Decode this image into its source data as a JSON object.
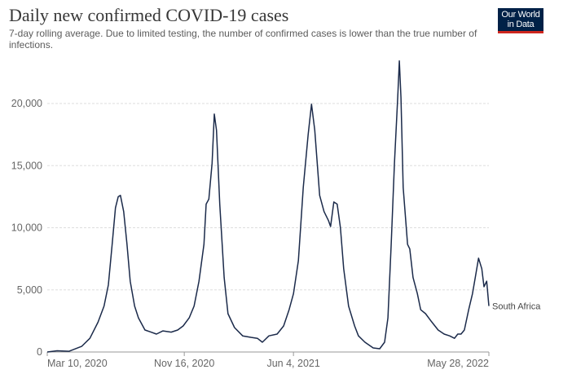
{
  "title": "Daily new confirmed COVID-19 cases",
  "subtitle": "7-day rolling average. Due to limited testing, the number of confirmed cases is lower than the true number of infections.",
  "logo": "Our World in Data",
  "chart_data": {
    "type": "line",
    "title": "Daily new confirmed COVID-19 cases",
    "subtitle": "7-day rolling average. Due to limited testing, the number of confirmed cases is lower than the true number of infections.",
    "xlabel": "",
    "ylabel": "",
    "xlim": [
      "2020-03-10",
      "2022-05-28"
    ],
    "ylim": [
      0,
      25000
    ],
    "grid": "horizontal dashed",
    "line_color": "#1b2a4a",
    "yticks": [
      0,
      5000,
      10000,
      15000,
      20000
    ],
    "ytick_labels": [
      "0",
      "5,000",
      "10,000",
      "15,000",
      "20,000"
    ],
    "xticks": [
      "2020-03-10",
      "2020-11-16",
      "2021-06-04",
      "2022-05-28"
    ],
    "xtick_labels": [
      "Mar 10, 2020",
      "Nov 16, 2020",
      "Jun 4, 2021",
      "May 28, 2022"
    ],
    "series": [
      {
        "name": "South Africa",
        "points": [
          [
            "2020-03-10",
            0
          ],
          [
            "2020-03-28",
            100
          ],
          [
            "2020-04-19",
            60
          ],
          [
            "2020-05-12",
            450
          ],
          [
            "2020-05-27",
            1100
          ],
          [
            "2020-06-11",
            2400
          ],
          [
            "2020-06-22",
            3700
          ],
          [
            "2020-06-30",
            5400
          ],
          [
            "2020-07-07",
            8700
          ],
          [
            "2020-07-13",
            11600
          ],
          [
            "2020-07-18",
            12500
          ],
          [
            "2020-07-22",
            12600
          ],
          [
            "2020-07-28",
            11300
          ],
          [
            "2020-08-03",
            8700
          ],
          [
            "2020-08-09",
            5700
          ],
          [
            "2020-08-17",
            3700
          ],
          [
            "2020-08-24",
            2750
          ],
          [
            "2020-09-05",
            1770
          ],
          [
            "2020-09-16",
            1600
          ],
          [
            "2020-09-26",
            1440
          ],
          [
            "2020-10-08",
            1700
          ],
          [
            "2020-10-23",
            1600
          ],
          [
            "2020-11-04",
            1770
          ],
          [
            "2020-11-14",
            2100
          ],
          [
            "2020-11-25",
            2750
          ],
          [
            "2020-12-04",
            3700
          ],
          [
            "2020-12-13",
            5700
          ],
          [
            "2020-12-22",
            8660
          ],
          [
            "2020-12-26",
            11900
          ],
          [
            "2020-12-31",
            12300
          ],
          [
            "2021-01-06",
            15200
          ],
          [
            "2021-01-10",
            19150
          ],
          [
            "2021-01-14",
            17850
          ],
          [
            "2021-01-20",
            11900
          ],
          [
            "2021-01-28",
            6000
          ],
          [
            "2021-02-04",
            3080
          ],
          [
            "2021-02-16",
            1970
          ],
          [
            "2021-03-03",
            1300
          ],
          [
            "2021-03-18",
            1180
          ],
          [
            "2021-03-30",
            1100
          ],
          [
            "2021-04-08",
            790
          ],
          [
            "2021-04-20",
            1300
          ],
          [
            "2021-05-05",
            1440
          ],
          [
            "2021-05-17",
            2100
          ],
          [
            "2021-05-27",
            3400
          ],
          [
            "2021-06-04",
            4700
          ],
          [
            "2021-06-13",
            7350
          ],
          [
            "2021-06-22",
            13250
          ],
          [
            "2021-07-01",
            17500
          ],
          [
            "2021-07-07",
            19940
          ],
          [
            "2021-07-13",
            17850
          ],
          [
            "2021-07-22",
            12600
          ],
          [
            "2021-07-30",
            11300
          ],
          [
            "2021-08-07",
            10600
          ],
          [
            "2021-08-11",
            10100
          ],
          [
            "2021-08-17",
            12070
          ],
          [
            "2021-08-23",
            11900
          ],
          [
            "2021-08-29",
            10000
          ],
          [
            "2021-09-04",
            6700
          ],
          [
            "2021-09-13",
            3700
          ],
          [
            "2021-09-24",
            2100
          ],
          [
            "2021-10-01",
            1300
          ],
          [
            "2021-10-13",
            790
          ],
          [
            "2021-10-28",
            330
          ],
          [
            "2021-11-09",
            260
          ],
          [
            "2021-11-18",
            790
          ],
          [
            "2021-11-24",
            2750
          ],
          [
            "2021-11-30",
            8660
          ],
          [
            "2021-12-06",
            15200
          ],
          [
            "2021-12-12",
            20470
          ],
          [
            "2021-12-15",
            23430
          ],
          [
            "2021-12-18",
            20470
          ],
          [
            "2021-12-22",
            13250
          ],
          [
            "2021-12-30",
            8660
          ],
          [
            "2022-01-03",
            8300
          ],
          [
            "2022-01-09",
            6000
          ],
          [
            "2022-01-17",
            4700
          ],
          [
            "2022-01-23",
            3400
          ],
          [
            "2022-02-01",
            3080
          ],
          [
            "2022-02-12",
            2430
          ],
          [
            "2022-02-24",
            1770
          ],
          [
            "2022-03-07",
            1440
          ],
          [
            "2022-03-17",
            1300
          ],
          [
            "2022-03-26",
            1100
          ],
          [
            "2022-04-01",
            1440
          ],
          [
            "2022-04-07",
            1440
          ],
          [
            "2022-04-13",
            1770
          ],
          [
            "2022-04-21",
            3400
          ],
          [
            "2022-04-28",
            4700
          ],
          [
            "2022-05-03",
            6000
          ],
          [
            "2022-05-09",
            7550
          ],
          [
            "2022-05-15",
            6700
          ],
          [
            "2022-05-19",
            5250
          ],
          [
            "2022-05-24",
            5700
          ],
          [
            "2022-05-28",
            3700
          ]
        ]
      }
    ]
  }
}
